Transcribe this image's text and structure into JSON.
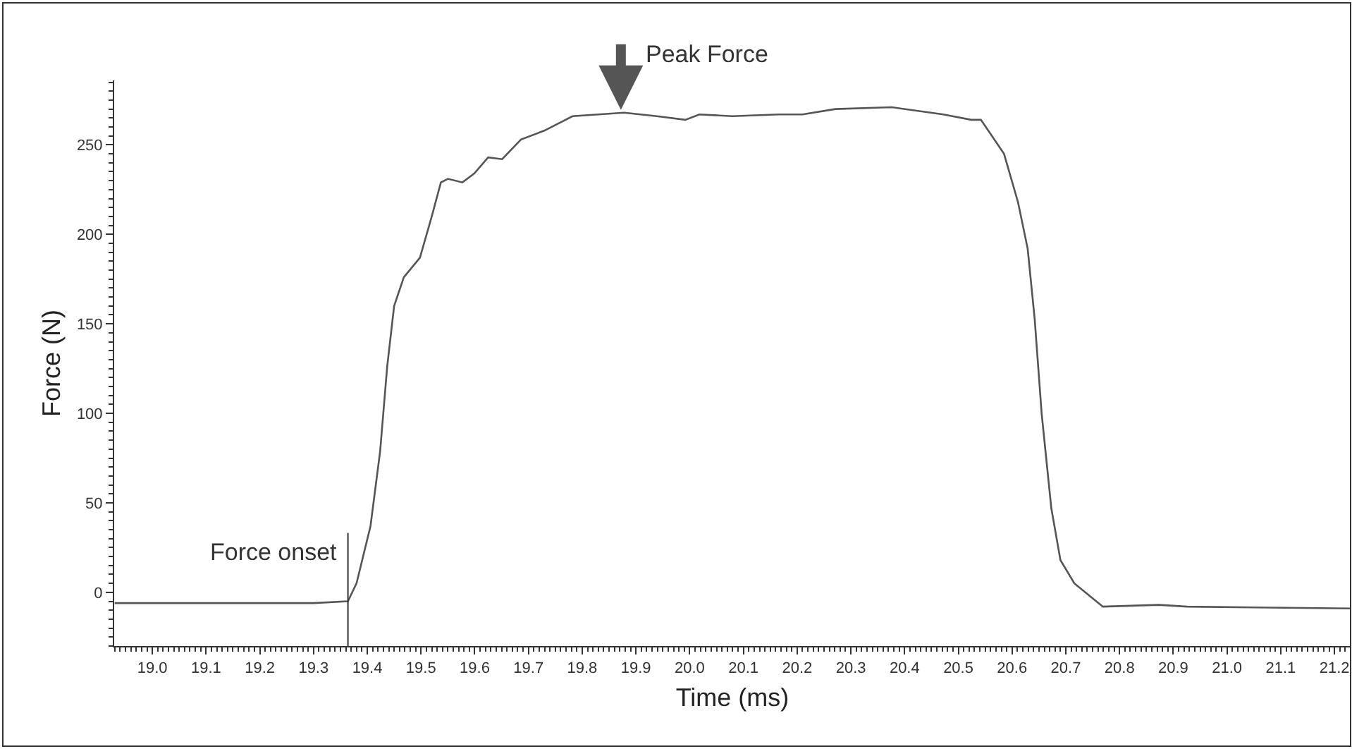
{
  "chart_data": {
    "type": "line",
    "xlabel": "Time (ms)",
    "ylabel": "Force (N)",
    "x": [
      18.93,
      19.1,
      19.3,
      19.364,
      19.38,
      19.406,
      19.424,
      19.437,
      19.45,
      19.468,
      19.498,
      19.52,
      19.537,
      19.55,
      19.577,
      19.599,
      19.625,
      19.651,
      19.686,
      19.73,
      19.782,
      19.878,
      19.939,
      19.992,
      20.018,
      20.079,
      20.166,
      20.21,
      20.271,
      20.376,
      20.472,
      20.524,
      20.542,
      20.585,
      20.611,
      20.629,
      20.642,
      20.655,
      20.673,
      20.69,
      20.716,
      20.769,
      20.873,
      20.926,
      21.23
    ],
    "series": [
      {
        "color": "#555555",
        "values": [
          -6,
          -6,
          -6,
          -5,
          5,
          37,
          79,
          126,
          160,
          176,
          187,
          210,
          229,
          231,
          229,
          234,
          243,
          242,
          253,
          258,
          266,
          268,
          266,
          264,
          267,
          266,
          267,
          267,
          270,
          271,
          267,
          264,
          264,
          245,
          218,
          192,
          153,
          100,
          47,
          18,
          5,
          -8,
          -7,
          -8,
          -9
        ]
      }
    ],
    "xlim": [
      18.929,
      21.23
    ],
    "ylim": [
      -30,
      286
    ],
    "xticks": [
      {
        "value": 19,
        "label": "19.0"
      },
      19.1,
      19.2,
      19.3,
      19.4,
      19.5,
      19.6,
      19.7,
      19.8,
      19.9,
      {
        "value": 20,
        "label": "20.0"
      },
      20.1,
      20.2,
      20.3,
      20.4,
      20.5,
      20.6,
      20.7,
      20.8,
      20.9,
      {
        "value": 21,
        "label": "21.0"
      },
      21.1,
      21.2
    ],
    "yticks": [
      0,
      50,
      100,
      150,
      200,
      250
    ],
    "ref_lines": [
      {
        "axis": "x",
        "value": 19.364,
        "label": "Force onset",
        "color": "#333333",
        "line_style": "solid"
      }
    ],
    "annotations": [
      {
        "text": "Peak Force",
        "x": 19.872,
        "y": 268
      }
    ],
    "marker": "none",
    "line_style": "solid"
  }
}
